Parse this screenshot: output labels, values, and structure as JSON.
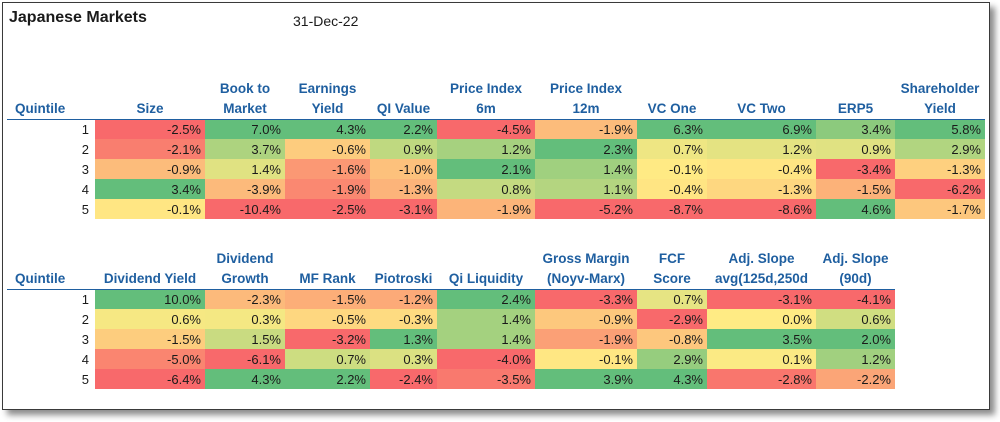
{
  "title": "Japanese Markets",
  "date": "31-Dec-22",
  "table1": {
    "headers": [
      "Quintile",
      "Size",
      "Book to Market",
      "Earnings Yield",
      "QI Value",
      "Price Index 6m",
      "Price Index 12m",
      "VC One",
      "VC Two",
      "ERP5",
      "Shareholder Yield"
    ],
    "header_lines": [
      [
        "Quintile"
      ],
      [
        "Size"
      ],
      [
        "Book to",
        "Market"
      ],
      [
        "Earnings",
        "Yield"
      ],
      [
        "QI Value"
      ],
      [
        "Price Index",
        "6m"
      ],
      [
        "Price Index",
        "12m"
      ],
      [
        "VC One"
      ],
      [
        "VC Two"
      ],
      [
        "ERP5"
      ],
      [
        "Shareholder",
        "Yield"
      ]
    ],
    "rows": [
      [
        "1",
        "-2.5%",
        "7.0%",
        "4.3%",
        "2.2%",
        "-4.5%",
        "-1.9%",
        "6.3%",
        "6.9%",
        "3.4%",
        "5.8%"
      ],
      [
        "2",
        "-2.1%",
        "3.7%",
        "-0.6%",
        "0.9%",
        "1.2%",
        "2.3%",
        "0.7%",
        "1.2%",
        "0.9%",
        "2.9%"
      ],
      [
        "3",
        "-0.9%",
        "1.4%",
        "-1.6%",
        "-1.0%",
        "2.1%",
        "1.4%",
        "-0.1%",
        "-0.4%",
        "-3.4%",
        "-1.3%"
      ],
      [
        "4",
        "3.4%",
        "-3.9%",
        "-1.9%",
        "-1.3%",
        "0.8%",
        "1.1%",
        "-0.4%",
        "-1.3%",
        "-1.5%",
        "-6.2%"
      ],
      [
        "5",
        "-0.1%",
        "-10.4%",
        "-2.5%",
        "-3.1%",
        "-1.9%",
        "-5.2%",
        "-8.7%",
        "-8.6%",
        "4.6%",
        "-1.7%"
      ]
    ]
  },
  "table2": {
    "headers": [
      "Quintile",
      "Dividend Yield",
      "Dividend Growth",
      "MF Rank",
      "Piotroski",
      "Qi Liquidity",
      "Gross Margin (Noyv-Marx)",
      "FCF Score",
      "Adj. Slope avg(125d,250d",
      "Adj. Slope (90d)"
    ],
    "header_lines": [
      [
        "Quintile"
      ],
      [
        "Dividend Yield"
      ],
      [
        "Dividend",
        "Growth"
      ],
      [
        "MF Rank"
      ],
      [
        "Piotroski"
      ],
      [
        "Qi Liquidity"
      ],
      [
        "Gross Margin",
        "(Noyv-Marx)"
      ],
      [
        "FCF",
        "Score"
      ],
      [
        "Adj. Slope",
        "avg(125d,250d"
      ],
      [
        "Adj. Slope",
        "(90d)"
      ]
    ],
    "rows": [
      [
        "1",
        "10.0%",
        "-2.3%",
        "-1.5%",
        "-1.2%",
        "2.4%",
        "-3.3%",
        "0.7%",
        "-3.1%",
        "-4.1%"
      ],
      [
        "2",
        "0.6%",
        "0.3%",
        "-0.5%",
        "-0.3%",
        "1.4%",
        "-0.9%",
        "-2.9%",
        "0.0%",
        "0.6%"
      ],
      [
        "3",
        "-1.5%",
        "1.5%",
        "-3.2%",
        "1.3%",
        "1.4%",
        "-1.9%",
        "-0.8%",
        "3.5%",
        "2.0%"
      ],
      [
        "4",
        "-5.0%",
        "-6.1%",
        "0.7%",
        "0.3%",
        "-4.0%",
        "-0.1%",
        "2.9%",
        "0.1%",
        "1.2%"
      ],
      [
        "5",
        "-6.4%",
        "4.3%",
        "2.2%",
        "-2.4%",
        "-3.5%",
        "3.9%",
        "4.3%",
        "-2.8%",
        "-2.2%"
      ]
    ]
  },
  "colors": {
    "header_text": "#1f5fa0",
    "scale_low": "#f8696b",
    "scale_mid": "#ffeb84",
    "scale_high": "#63be7b"
  }
}
